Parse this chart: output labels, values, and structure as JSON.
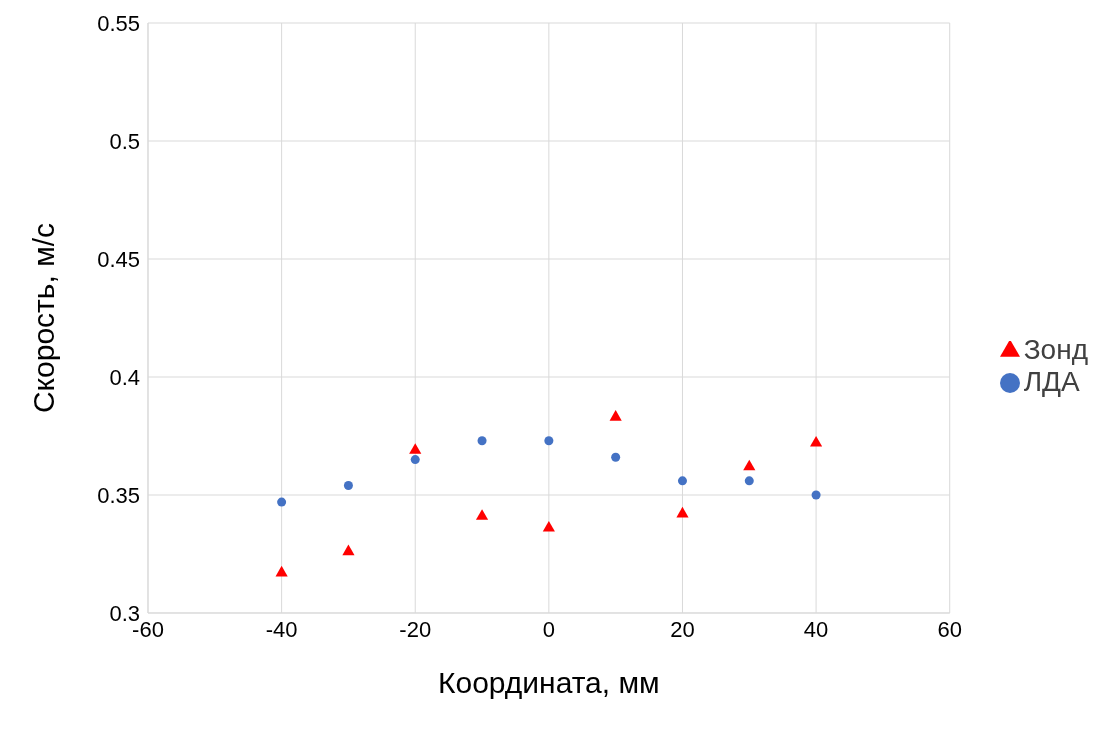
{
  "chart_data": {
    "type": "scatter",
    "xlabel": "Координата, мм",
    "ylabel": "Скорость, м/с",
    "x": [
      -40,
      -30,
      -20,
      -10,
      0,
      10,
      20,
      30,
      40
    ],
    "series": [
      {
        "name": "ЛДА",
        "color": "#4472c4",
        "marker": "circle",
        "values": [
          0.347,
          0.354,
          0.365,
          0.373,
          0.373,
          0.366,
          0.356,
          0.356,
          0.35
        ]
      },
      {
        "name": "Зонд",
        "color": "#ff0000",
        "marker": "triangle",
        "values": [
          0.317,
          0.326,
          0.369,
          0.341,
          0.336,
          0.383,
          0.342,
          0.362,
          0.372
        ]
      }
    ],
    "xlim": [
      -60,
      60
    ],
    "xticks": [
      -60,
      -40,
      -20,
      0,
      20,
      40,
      60
    ],
    "ylim": [
      0.3,
      0.55
    ],
    "yticks": [
      0.3,
      0.35,
      0.4,
      0.45,
      0.5,
      0.55
    ],
    "grid": true,
    "legend": "right"
  }
}
